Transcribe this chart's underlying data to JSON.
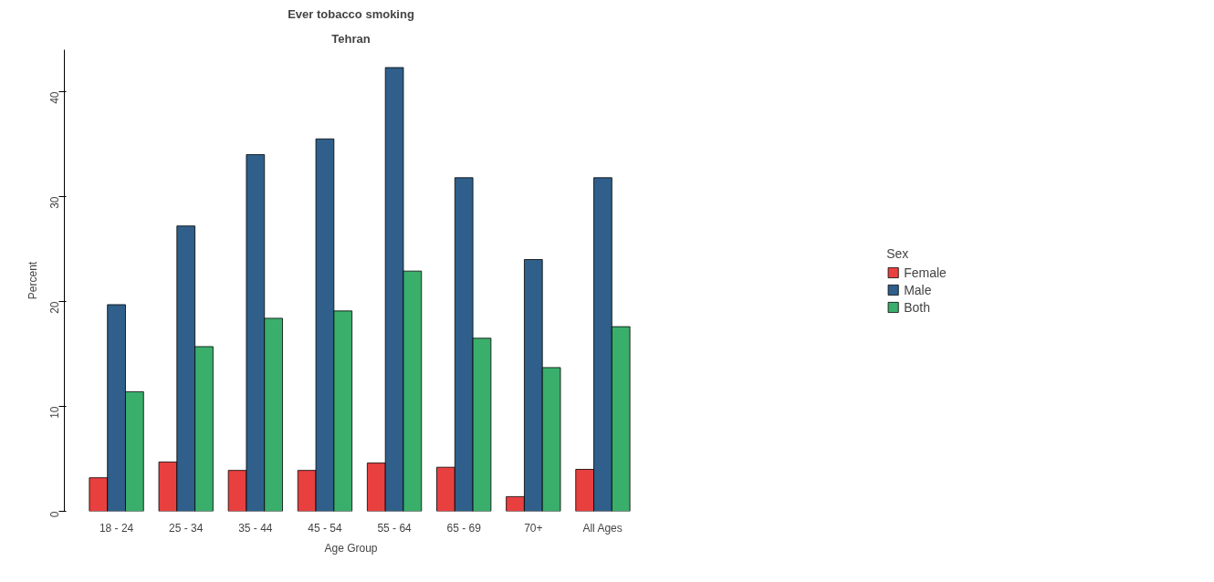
{
  "chart_data": {
    "type": "bar",
    "title": "Ever tobacco smoking",
    "subtitle": "Tehran",
    "xlabel": "Age Group",
    "ylabel": "Percent",
    "legend_title": "Sex",
    "categories": [
      "18 - 24",
      "25 - 34",
      "35 - 44",
      "45 - 54",
      "55 - 64",
      "65 - 69",
      "70+",
      "All Ages"
    ],
    "series": [
      {
        "name": "Female",
        "color": "#e8403f",
        "values": [
          3.2,
          4.7,
          3.9,
          3.9,
          4.6,
          4.2,
          1.4,
          4.0
        ]
      },
      {
        "name": "Male",
        "color": "#2f5f8a",
        "values": [
          19.7,
          27.2,
          34.0,
          35.5,
          42.3,
          31.8,
          24.0,
          31.8
        ]
      },
      {
        "name": "Both",
        "color": "#3aae6b",
        "values": [
          11.4,
          15.7,
          18.4,
          19.1,
          22.9,
          16.5,
          13.7,
          17.6
        ]
      }
    ],
    "ylim": [
      0,
      44
    ],
    "yticks": [
      0,
      10,
      20,
      30,
      40
    ],
    "grid": false,
    "legend": "right"
  }
}
